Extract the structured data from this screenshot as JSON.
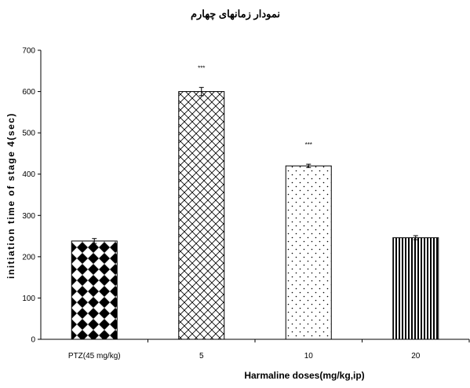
{
  "chart_data": {
    "type": "bar",
    "title": "نمودار زمانهای چهارم",
    "xlabel": "Harmaline doses(mg/kg,ip)",
    "ylabel": "initiation time of stage 4(sec)",
    "categories": [
      "PTZ(45 mg/kg)",
      "5",
      "10",
      "20"
    ],
    "values": [
      238,
      600,
      420,
      246
    ],
    "errors": [
      6,
      10,
      4,
      5
    ],
    "annotations": [
      "",
      "***",
      "***",
      ""
    ],
    "patterns": [
      "checker-diamond",
      "crosshatch",
      "dots",
      "vertical-stripes"
    ],
    "ylim": [
      0,
      700
    ],
    "yticks": [
      0,
      100,
      200,
      300,
      400,
      500,
      600,
      700
    ],
    "grid": false,
    "legend": "none"
  }
}
